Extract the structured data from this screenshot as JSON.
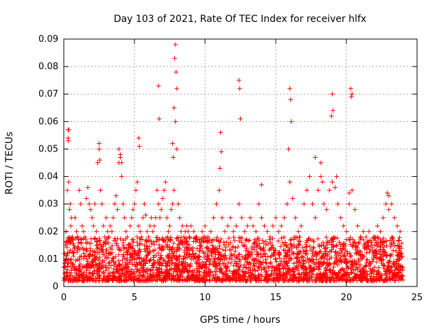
{
  "chart_data": {
    "type": "scatter",
    "title": "Day 103 of 2021, Rate Of TEC Index for receiver hlfx",
    "xlabel": "GPS time / hours",
    "ylabel": "ROTI / TECUs",
    "xlim": [
      0,
      25
    ],
    "ylim": [
      0,
      0.09
    ],
    "xticks": [
      "0",
      "5",
      "10",
      "15",
      "20",
      "25"
    ],
    "yticks": [
      "0",
      "0.01",
      "0.02",
      "0.03",
      "0.04",
      "0.05",
      "0.06",
      "0.07",
      "0.08",
      "0.09"
    ],
    "grid": true,
    "marker": "+",
    "colors": {
      "series": "#ff0000",
      "grid": "#a0a0a0"
    },
    "series": [
      {
        "x": [
          0.05,
          0.15,
          0.25,
          0.35,
          0.45,
          0.55,
          0.3,
          0.32,
          0.4,
          0.5,
          0.6,
          0.7,
          0.8,
          0.9,
          1.0,
          1.1,
          1.2,
          1.3,
          1.4,
          1.5,
          1.6,
          1.7,
          1.8,
          1.9,
          2.0,
          2.1,
          2.2,
          2.3,
          2.4,
          2.5,
          2.6,
          2.7,
          2.8,
          2.9,
          3.0,
          3.1,
          3.2,
          3.3,
          3.4,
          3.5,
          3.6,
          3.7,
          3.8,
          3.9,
          4.0,
          4.1,
          4.2,
          4.3,
          4.4,
          4.5,
          4.6,
          4.7,
          4.8,
          4.9,
          5.0,
          5.1,
          5.2,
          5.3,
          5.4,
          5.5,
          5.6,
          5.7,
          5.8,
          5.9,
          6.0,
          6.1,
          6.2,
          6.3,
          6.4,
          6.5,
          6.6,
          6.7,
          6.8,
          6.9,
          7.0,
          7.1,
          7.2,
          7.3,
          7.4,
          7.5,
          7.6,
          7.7,
          7.8,
          7.9,
          8.0,
          8.1,
          8.2,
          8.3,
          8.4,
          8.5,
          8.6,
          8.7,
          8.8,
          8.9,
          9.0,
          9.2,
          9.4,
          9.6,
          9.8,
          10.0,
          10.2,
          10.4,
          10.6,
          10.8,
          11.0,
          11.2,
          11.4,
          11.6,
          11.8,
          12.0,
          12.2,
          12.4,
          12.6,
          12.8,
          13.0,
          13.2,
          13.4,
          13.6,
          13.8,
          14.0,
          14.2,
          14.4,
          14.6,
          14.8,
          15.0,
          15.2,
          15.4,
          15.6,
          15.8,
          16.0,
          16.2,
          16.4,
          16.6,
          16.8,
          17.0,
          17.2,
          17.4,
          17.6,
          17.8,
          18.0,
          18.2,
          18.4,
          18.6,
          18.8,
          19.0,
          19.2,
          19.4,
          19.6,
          19.8,
          20.0,
          20.2,
          20.4,
          20.6,
          20.8,
          21.0,
          21.2,
          21.4,
          21.6,
          21.8,
          22.0,
          22.2,
          22.4,
          22.6,
          22.8,
          23.0,
          23.2,
          23.4,
          23.6,
          23.8,
          7.9,
          7.85,
          7.95,
          8.0,
          7.8,
          6.7,
          6.75,
          7.7,
          7.75,
          12.4,
          12.45,
          12.5,
          16.0,
          16.05,
          16.1,
          15.9,
          19.0,
          19.05,
          18.95,
          20.3,
          20.35,
          20.4,
          0.35,
          0.3,
          2.5,
          2.55,
          3.9,
          4.0,
          4.1,
          5.3,
          5.35,
          11.1,
          11.15,
          11.05,
          17.8,
          18.2,
          18.3,
          19.3,
          14.0,
          20.2,
          22.9,
          23.0
        ],
        "y": [
          0.012,
          0.02,
          0.035,
          0.038,
          0.03,
          0.025,
          0.057,
          0.053,
          0.028,
          0.022,
          0.018,
          0.015,
          0.025,
          0.02,
          0.018,
          0.035,
          0.03,
          0.022,
          0.02,
          0.018,
          0.032,
          0.036,
          0.03,
          0.028,
          0.025,
          0.022,
          0.03,
          0.02,
          0.045,
          0.05,
          0.035,
          0.03,
          0.022,
          0.018,
          0.025,
          0.02,
          0.018,
          0.022,
          0.02,
          0.025,
          0.03,
          0.033,
          0.028,
          0.045,
          0.048,
          0.04,
          0.03,
          0.025,
          0.02,
          0.018,
          0.015,
          0.022,
          0.025,
          0.028,
          0.03,
          0.035,
          0.038,
          0.022,
          0.02,
          0.018,
          0.025,
          0.03,
          0.026,
          0.02,
          0.018,
          0.022,
          0.025,
          0.02,
          0.022,
          0.025,
          0.035,
          0.03,
          0.025,
          0.028,
          0.032,
          0.035,
          0.038,
          0.025,
          0.02,
          0.022,
          0.028,
          0.03,
          0.035,
          0.06,
          0.05,
          0.03,
          0.025,
          0.02,
          0.022,
          0.018,
          0.02,
          0.022,
          0.02,
          0.018,
          0.022,
          0.02,
          0.018,
          0.016,
          0.02,
          0.022,
          0.018,
          0.02,
          0.025,
          0.03,
          0.035,
          0.025,
          0.02,
          0.022,
          0.025,
          0.02,
          0.022,
          0.03,
          0.025,
          0.02,
          0.022,
          0.025,
          0.022,
          0.02,
          0.03,
          0.025,
          0.022,
          0.02,
          0.018,
          0.022,
          0.025,
          0.02,
          0.022,
          0.025,
          0.03,
          0.038,
          0.032,
          0.025,
          0.02,
          0.022,
          0.03,
          0.035,
          0.04,
          0.03,
          0.025,
          0.035,
          0.04,
          0.03,
          0.028,
          0.035,
          0.038,
          0.036,
          0.03,
          0.025,
          0.022,
          0.02,
          0.03,
          0.035,
          0.028,
          0.022,
          0.018,
          0.02,
          0.018,
          0.02,
          0.015,
          0.018,
          0.022,
          0.02,
          0.025,
          0.03,
          0.033,
          0.03,
          0.025,
          0.022,
          0.02,
          0.088,
          0.083,
          0.078,
          0.072,
          0.065,
          0.073,
          0.061,
          0.052,
          0.047,
          0.075,
          0.072,
          0.061,
          0.072,
          0.068,
          0.06,
          0.05,
          0.07,
          0.064,
          0.062,
          0.072,
          0.069,
          0.07,
          0.057,
          0.054,
          0.052,
          0.046,
          0.05,
          0.047,
          0.045,
          0.054,
          0.051,
          0.056,
          0.049,
          0.043,
          0.047,
          0.045,
          0.038,
          0.04,
          0.037,
          0.034,
          0.034,
          0.028
        ],
        "note_ref": ""
      }
    ],
    "dense_band": {
      "x_range": [
        0,
        24
      ],
      "y_range": [
        0.002,
        0.018
      ]
    }
  }
}
